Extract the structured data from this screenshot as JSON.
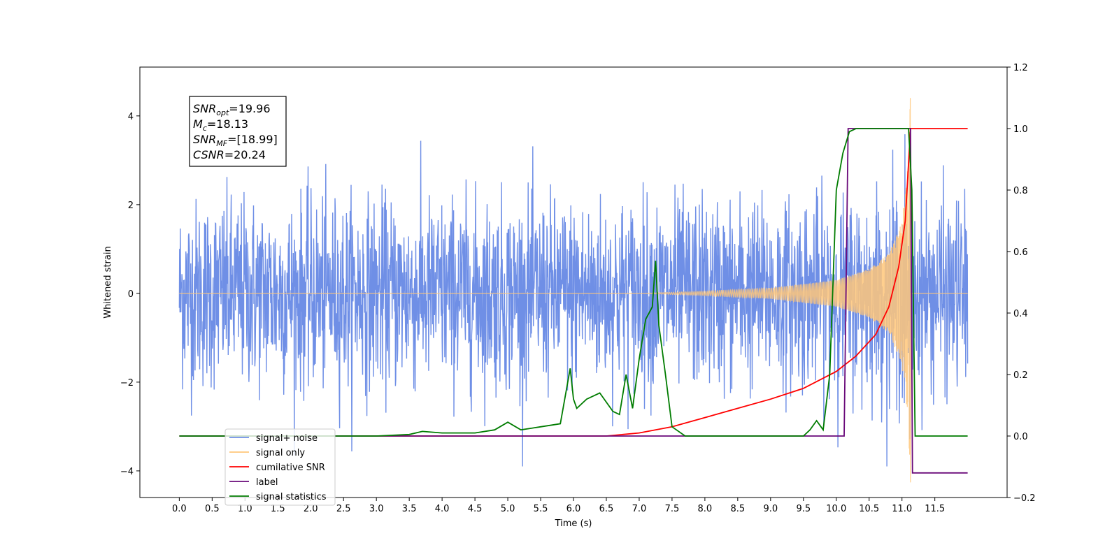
{
  "chart_data": {
    "type": "line",
    "xlabel": "Time (s)",
    "ylabel_left": "Whitened strain",
    "ylabel_right": "",
    "xlim": [
      -0.6,
      12.6
    ],
    "ylim_left": [
      -4.6,
      5.1
    ],
    "ylim_right": [
      -0.2,
      1.2
    ],
    "x_ticks": [
      "0.0",
      "0.5",
      "1.0",
      "1.5",
      "2.0",
      "2.5",
      "3.0",
      "3.5",
      "4.0",
      "4.5",
      "5.0",
      "5.5",
      "6.0",
      "6.5",
      "7.0",
      "7.5",
      "8.0",
      "8.5",
      "9.0",
      "9.5",
      "10.0",
      "10.5",
      "11.0",
      "11.5"
    ],
    "y_ticks_left": [
      "−4",
      "−2",
      "0",
      "2",
      "4"
    ],
    "y_ticks_right": [
      "−0.2",
      "0.0",
      "0.2",
      "0.4",
      "0.6",
      "0.8",
      "1.0",
      "1.2"
    ],
    "grid": false,
    "legend_position": "lower-left",
    "annotation": {
      "lines": [
        {
          "main": "SNR",
          "sub": "opt",
          "rest": "=19.96"
        },
        {
          "main": "M",
          "sub": "c",
          "rest": "=18.13"
        },
        {
          "main": "SNR",
          "sub": "MF",
          "rest": "=[18.99]"
        },
        {
          "main": "CSNR",
          "sub": "",
          "rest": "=20.24"
        }
      ]
    },
    "series": [
      {
        "name": "signal+ noise",
        "color": "#6f8fe6",
        "axis": "left",
        "description_values": {
          "x_range": [
            0.0,
            12.0
          ],
          "typical_amplitude": 1.5,
          "peak_max": 4.1,
          "peak_min": -3.9
        }
      },
      {
        "name": "signal only",
        "color": "#ffc77a",
        "axis": "left",
        "chirp": {
          "start": 7.0,
          "merger": 11.13,
          "envelope": [
            [
              7.0,
              0.0
            ],
            [
              8.0,
              0.05
            ],
            [
              9.0,
              0.12
            ],
            [
              10.0,
              0.3
            ],
            [
              10.5,
              0.55
            ],
            [
              10.8,
              0.9
            ],
            [
              11.0,
              1.6
            ],
            [
              11.1,
              3.0
            ],
            [
              11.13,
              4.6
            ]
          ]
        }
      },
      {
        "name": "cumilative SNR",
        "color": "#ff0000",
        "axis": "right",
        "x": [
          0.0,
          6.5,
          7.0,
          7.5,
          8.0,
          8.5,
          9.0,
          9.5,
          10.0,
          10.3,
          10.6,
          10.8,
          10.95,
          11.05,
          11.13,
          11.2,
          12.0
        ],
        "y": [
          0.0,
          0.0,
          0.01,
          0.03,
          0.06,
          0.09,
          0.12,
          0.155,
          0.21,
          0.26,
          0.33,
          0.42,
          0.55,
          0.7,
          1.0,
          1.0,
          1.0
        ]
      },
      {
        "name": "label",
        "color": "#6a0a7a",
        "axis": "right",
        "x": [
          0.0,
          10.12,
          10.18,
          11.1,
          11.13,
          11.16,
          12.0
        ],
        "y": [
          0.0,
          0.0,
          1.0,
          1.0,
          1.0,
          -0.12,
          -0.12
        ]
      },
      {
        "name": "signal statistics",
        "color": "#007c00",
        "axis": "right",
        "x": [
          0.0,
          3.0,
          3.5,
          3.7,
          4.0,
          4.5,
          4.8,
          5.0,
          5.2,
          5.5,
          5.8,
          5.95,
          6.0,
          6.05,
          6.2,
          6.4,
          6.6,
          6.7,
          6.8,
          6.9,
          7.0,
          7.1,
          7.2,
          7.25,
          7.3,
          7.4,
          7.5,
          7.7,
          8.0,
          9.0,
          9.5,
          9.6,
          9.7,
          9.8,
          9.9,
          10.0,
          10.1,
          10.2,
          10.3,
          10.5,
          11.0,
          11.1,
          11.15,
          11.2,
          12.0
        ],
        "y": [
          0.0,
          0.0,
          0.005,
          0.015,
          0.01,
          0.01,
          0.02,
          0.045,
          0.02,
          0.03,
          0.04,
          0.22,
          0.12,
          0.09,
          0.12,
          0.14,
          0.08,
          0.07,
          0.2,
          0.09,
          0.25,
          0.38,
          0.42,
          0.57,
          0.36,
          0.2,
          0.03,
          0.0,
          0.0,
          0.0,
          0.0,
          0.02,
          0.05,
          0.02,
          0.2,
          0.8,
          0.92,
          0.99,
          1.0,
          1.0,
          1.0,
          1.0,
          0.8,
          0.0,
          0.0
        ]
      }
    ]
  }
}
